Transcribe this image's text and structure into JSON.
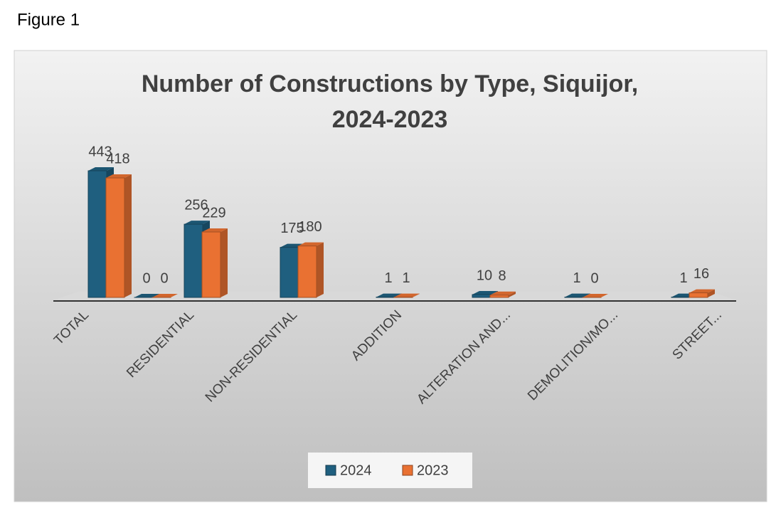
{
  "figure_label": "Figure 1",
  "chart_data": {
    "type": "bar3d",
    "title": "Number of Constructions by Type, Siquijor, 2024-2023",
    "categories": [
      "TOTAL",
      null,
      "RESIDENTIAL",
      "NON-RESIDENTIAL",
      "ADDITION",
      "ALTERATION AND...",
      "DEMOLITION/MO...",
      "STREET..."
    ],
    "series": [
      {
        "name": "2024",
        "color": "#1f5f7f",
        "values": [
          443,
          0,
          256,
          175,
          1,
          10,
          1,
          1
        ]
      },
      {
        "name": "2023",
        "color": "#e97132",
        "values": [
          418,
          0,
          229,
          180,
          1,
          8,
          0,
          16
        ]
      }
    ],
    "legend": "bottom"
  }
}
